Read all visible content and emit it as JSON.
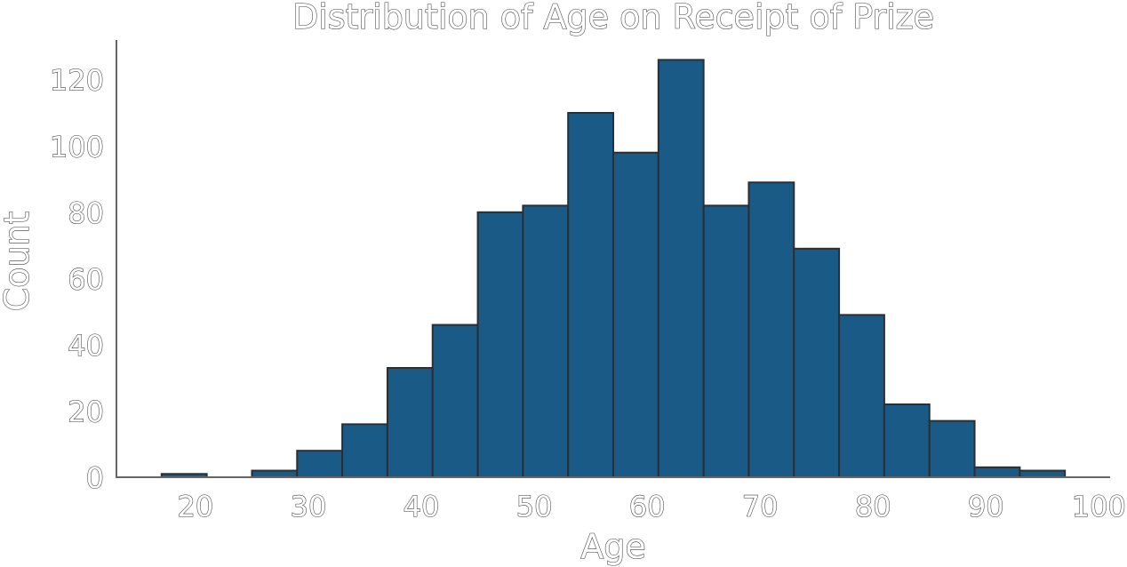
{
  "chart_data": {
    "type": "bar",
    "title": "Distribution of Age on Receipt of Prize",
    "xlabel": "Age",
    "ylabel": "Count",
    "xlim": [
      13,
      101
    ],
    "ylim": [
      0,
      132
    ],
    "xticks": [
      20,
      30,
      40,
      50,
      60,
      70,
      80,
      90,
      100
    ],
    "yticks": [
      0,
      20,
      40,
      60,
      80,
      100,
      120
    ],
    "bin_width": 4,
    "bins": [
      {
        "start": 17,
        "end": 21,
        "count": 1
      },
      {
        "start": 21,
        "end": 25,
        "count": 0
      },
      {
        "start": 25,
        "end": 29,
        "count": 2
      },
      {
        "start": 29,
        "end": 33,
        "count": 8
      },
      {
        "start": 33,
        "end": 37,
        "count": 16
      },
      {
        "start": 37,
        "end": 41,
        "count": 33
      },
      {
        "start": 41,
        "end": 45,
        "count": 46
      },
      {
        "start": 45,
        "end": 49,
        "count": 80
      },
      {
        "start": 49,
        "end": 53,
        "count": 82
      },
      {
        "start": 53,
        "end": 57,
        "count": 110
      },
      {
        "start": 57,
        "end": 61,
        "count": 98
      },
      {
        "start": 61,
        "end": 65,
        "count": 126
      },
      {
        "start": 65,
        "end": 69,
        "count": 82
      },
      {
        "start": 69,
        "end": 73,
        "count": 89
      },
      {
        "start": 73,
        "end": 77,
        "count": 69
      },
      {
        "start": 77,
        "end": 81,
        "count": 49
      },
      {
        "start": 81,
        "end": 85,
        "count": 22
      },
      {
        "start": 85,
        "end": 89,
        "count": 17
      },
      {
        "start": 89,
        "end": 93,
        "count": 3
      },
      {
        "start": 93,
        "end": 97,
        "count": 2
      }
    ],
    "grid": false,
    "colors": {
      "bar": "#1a5a87",
      "edge": "#2b2f33"
    }
  }
}
